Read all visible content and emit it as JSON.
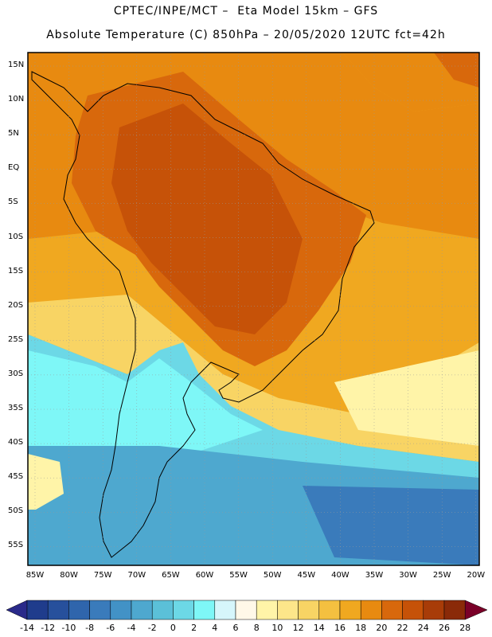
{
  "header": {
    "line1": "CPTEC/INPE/MCT –  Eta Model 15km – GFS",
    "line2": "Absolute Temperature (C) 850hPa – 20/05/2020 12UTC fct=42h"
  },
  "axes": {
    "lat_labels": [
      "15N",
      "10N",
      "5N",
      "EQ",
      "5S",
      "10S",
      "15S",
      "20S",
      "25S",
      "30S",
      "35S",
      "40S",
      "45S",
      "50S",
      "55S"
    ],
    "lon_labels": [
      "85W",
      "80W",
      "75W",
      "70W",
      "65W",
      "60W",
      "55W",
      "50W",
      "45W",
      "40W",
      "35W",
      "30W",
      "25W",
      "20W"
    ]
  },
  "colorbar": {
    "labels": [
      "-14",
      "-12",
      "-10",
      "-8",
      "-6",
      "-4",
      "-2",
      "0",
      "2",
      "4",
      "6",
      "8",
      "10",
      "12",
      "14",
      "16",
      "18",
      "20",
      "22",
      "24",
      "26",
      "28"
    ],
    "colors": [
      "#1f3c8c",
      "#27509c",
      "#2f65ac",
      "#3a7bbb",
      "#4292c6",
      "#4ea8cf",
      "#5bc0d8",
      "#6cd8e6",
      "#7ef7f7",
      "#d6f6fb",
      "#fff8e8",
      "#fff4a8",
      "#fde68a",
      "#f8d464",
      "#f4c040",
      "#f0a820",
      "#e88a10",
      "#d8680c",
      "#c65208",
      "#a83c08",
      "#8a2a08"
    ],
    "under_color": "#2a2a8a",
    "over_color": "#7a0028"
  }
}
